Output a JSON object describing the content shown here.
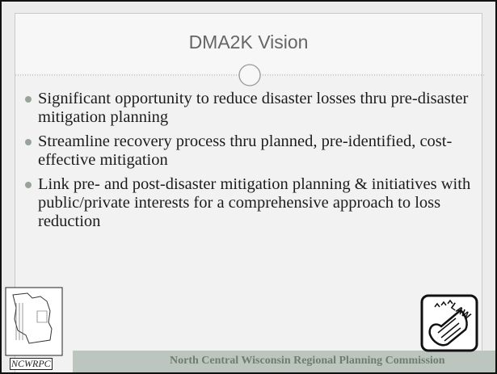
{
  "title": "DMA2K Vision",
  "bullets": [
    "Significant opportunity to reduce disaster losses thru pre-disaster mitigation planning",
    "Streamline recovery process thru planned, pre-identified, cost-effective mitigation",
    "Link pre- and post-disaster mitigation planning & initiatives with public/private interests for a comprehensive approach to loss reduction"
  ],
  "logo_text": "NCWRPC",
  "icon_text": "LAW",
  "footer": "North Central Wisconsin Regional Planning Commission"
}
